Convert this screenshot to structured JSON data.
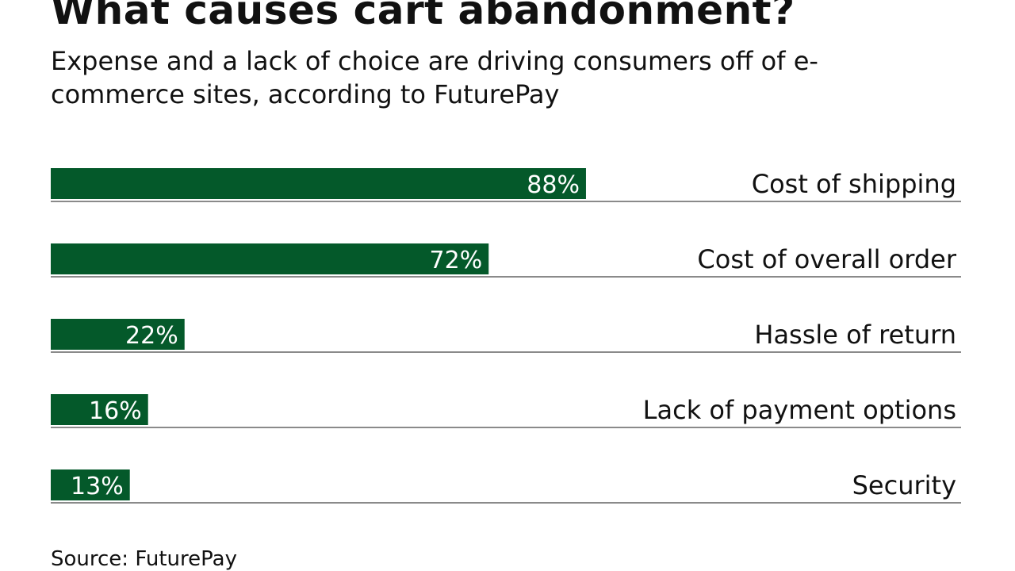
{
  "chart_data": {
    "type": "bar",
    "orientation": "horizontal",
    "title": "What causes cart abandonment?",
    "subtitle": "Expense and a lack of choice are driving consumers off of e-commerce sites, according to FuturePay",
    "categories": [
      "Cost of shipping",
      "Cost of overall order",
      "Hassle of return",
      "Lack of payment options",
      "Security"
    ],
    "values": [
      88,
      72,
      22,
      16,
      13
    ],
    "data_labels": [
      "88%",
      "72%",
      "22%",
      "16%",
      "13%"
    ],
    "xlim": [
      0,
      100
    ],
    "grid": false,
    "bar_color": "#04592a",
    "source": "Source: FuturePay"
  }
}
